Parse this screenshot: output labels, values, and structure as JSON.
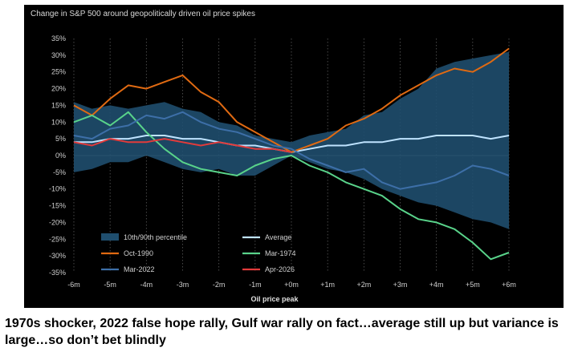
{
  "chart_data": {
    "type": "line",
    "title": "Change in S&P 500 around geopolitically driven oil price spikes",
    "xlabel": "Oil price peak",
    "ylabel": "",
    "x_ticks": [
      "-6m",
      "-5m",
      "-4m",
      "-3m",
      "-2m",
      "-1m",
      "+0m",
      "+1m",
      "+2m",
      "+3m",
      "+4m",
      "+5m",
      "+6m"
    ],
    "y_ticks": [
      "35%",
      "30%",
      "25%",
      "20%",
      "15%",
      "10%",
      "5%",
      "0%",
      "-5%",
      "-10%",
      "-15%",
      "-20%",
      "-25%",
      "-30%",
      "-35%"
    ],
    "xlim": [
      -6,
      6
    ],
    "ylim": [
      -35,
      35
    ],
    "grid": "vertical dotted",
    "legend_position": "bottom-left",
    "band": {
      "name": "10th/90th percentile",
      "color": "#1f4e6e",
      "x": [
        -6,
        -5.5,
        -5,
        -4.5,
        -4,
        -3.5,
        -3,
        -2.5,
        -2,
        -1.5,
        -1,
        -0.5,
        0,
        0.5,
        1,
        1.5,
        2,
        2.5,
        3,
        3.5,
        4,
        4.5,
        5,
        5.5,
        6
      ],
      "upper": [
        16,
        14,
        15,
        14,
        15,
        16,
        14,
        13,
        10,
        9,
        6,
        5,
        4,
        6,
        7,
        8,
        12,
        13,
        17,
        20,
        26,
        28,
        29,
        30,
        31
      ],
      "lower": [
        -5,
        -4,
        -2,
        -2,
        0,
        -2,
        -4,
        -5,
        -4,
        -6,
        -6,
        -3,
        0,
        -2,
        -4,
        -5,
        -7,
        -10,
        -12,
        -14,
        -15,
        -17,
        -19,
        -20,
        -22
      ]
    },
    "series": [
      {
        "name": "Average",
        "color": "#bfe3ff",
        "x": [
          -6,
          -5.5,
          -5,
          -4.5,
          -4,
          -3.5,
          -3,
          -2.5,
          -2,
          -1.5,
          -1,
          -0.5,
          0,
          0.5,
          1,
          1.5,
          2,
          2.5,
          3,
          3.5,
          4,
          4.5,
          5,
          5.5,
          6
        ],
        "values": [
          4,
          4,
          5,
          5,
          6,
          6,
          5,
          5,
          4,
          3,
          3,
          2,
          1,
          2,
          3,
          3,
          4,
          4,
          5,
          5,
          6,
          6,
          6,
          5,
          6
        ]
      },
      {
        "name": "Oct-1990",
        "color": "#e06a12",
        "x": [
          -6,
          -5.5,
          -5,
          -4.5,
          -4,
          -3.5,
          -3,
          -2.5,
          -2,
          -1.5,
          -1,
          -0.5,
          0,
          0.5,
          1,
          1.5,
          2,
          2.5,
          3,
          3.5,
          4,
          4.5,
          5,
          5.5,
          6
        ],
        "values": [
          15,
          12,
          17,
          21,
          20,
          22,
          24,
          19,
          16,
          10,
          7,
          4,
          1,
          3,
          5,
          9,
          11,
          14,
          18,
          21,
          24,
          26,
          25,
          28,
          32
        ]
      },
      {
        "name": "Mar-1974",
        "color": "#59d38a",
        "x": [
          -6,
          -5.5,
          -5,
          -4.5,
          -4,
          -3.5,
          -3,
          -2.5,
          -2,
          -1.5,
          -1,
          -0.5,
          0,
          0.5,
          1,
          1.5,
          2,
          2.5,
          3,
          3.5,
          4,
          4.5,
          5,
          5.5,
          6
        ],
        "values": [
          10,
          12,
          9,
          13,
          7,
          2,
          -2,
          -4,
          -5,
          -6,
          -3,
          -1,
          0,
          -3,
          -5,
          -8,
          -10,
          -12,
          -16,
          -19,
          -20,
          -22,
          -26,
          -31,
          -29
        ]
      },
      {
        "name": "Mar-2022",
        "color": "#3d6fa8",
        "x": [
          -6,
          -5.5,
          -5,
          -4.5,
          -4,
          -3.5,
          -3,
          -2.5,
          -2,
          -1.5,
          -1,
          -0.5,
          0,
          0.5,
          1,
          1.5,
          2,
          2.5,
          3,
          3.5,
          4,
          4.5,
          5,
          5.5,
          6
        ],
        "values": [
          6,
          5,
          8,
          9,
          12,
          11,
          13,
          10,
          8,
          7,
          5,
          3,
          2,
          -1,
          -3,
          -5,
          -4,
          -8,
          -10,
          -9,
          -8,
          -6,
          -3,
          -4,
          -6
        ]
      },
      {
        "name": "Apr-2026",
        "color": "#e23b3b",
        "x": [
          -6,
          -5.5,
          -5,
          -4.5,
          -4,
          -3.5,
          -3,
          -2.5,
          -2,
          -1.5,
          -1,
          -0.5,
          0
        ],
        "values": [
          4,
          3,
          5,
          4,
          4,
          5,
          4,
          3,
          4,
          3,
          2,
          2,
          1
        ]
      }
    ]
  },
  "caption": "1970s shocker, 2022 false hope rally, Gulf war rally on fact…average still up but variance is large…so don’t bet blindly"
}
